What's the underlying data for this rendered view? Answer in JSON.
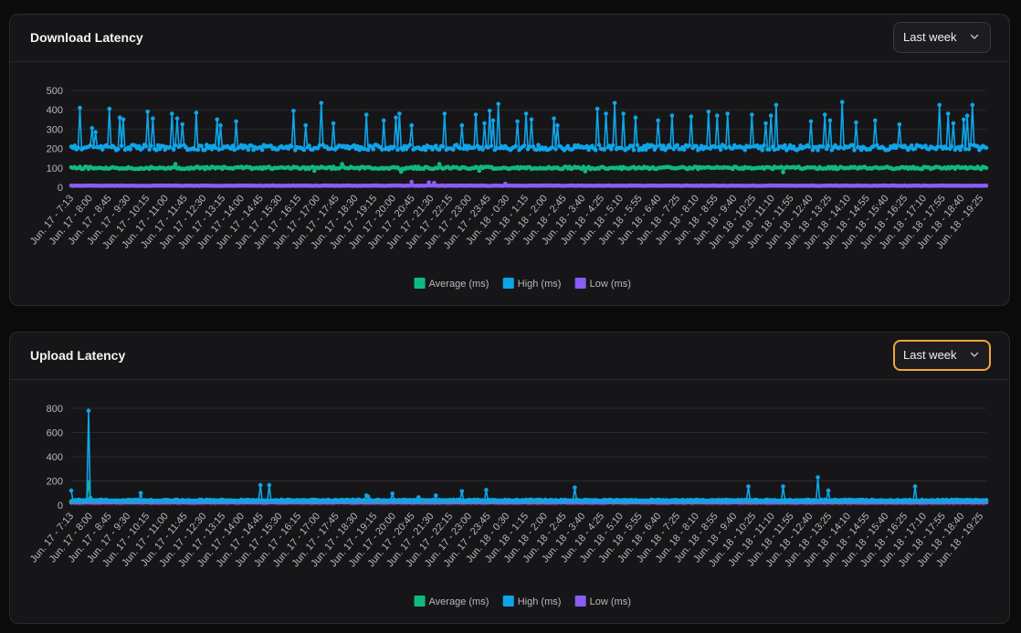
{
  "panels": [
    {
      "title": "Download Latency",
      "range_label": "Last week",
      "focused": false
    },
    {
      "title": "Upload Latency",
      "range_label": "Last week",
      "focused": true
    }
  ],
  "colors": {
    "average": "#10b981",
    "high": "#0ea5e9",
    "low": "#8b5cf6",
    "grid": "#2b2b2f",
    "focus": "#f0a53a"
  },
  "icons": {
    "dropdown": "chevron-down-icon"
  },
  "chart_data": [
    {
      "type": "line",
      "title": "Download Latency",
      "xlabel": "",
      "ylabel": "",
      "ylim": [
        0,
        500
      ],
      "yticks": [
        0,
        100,
        200,
        300,
        400,
        500
      ],
      "grid": true,
      "legend": "bottom-center",
      "x_tick_labels": [
        "Jun. 17 - 7:13",
        "Jun. 17 - 8:00",
        "Jun. 17 - 8:45",
        "Jun. 17 - 9:30",
        "Jun. 17 - 10:15",
        "Jun. 17 - 11:00",
        "Jun. 17 - 11:45",
        "Jun. 17 - 12:30",
        "Jun. 17 - 13:15",
        "Jun. 17 - 14:00",
        "Jun. 17 - 14:45",
        "Jun. 17 - 15:30",
        "Jun. 17 - 16:15",
        "Jun. 17 - 17:00",
        "Jun. 17 - 17:45",
        "Jun. 17 - 18:30",
        "Jun. 17 - 19:15",
        "Jun. 17 - 20:00",
        "Jun. 17 - 20:45",
        "Jun. 17 - 21:30",
        "Jun. 17 - 22:15",
        "Jun. 17 - 23:00",
        "Jun. 17 - 23:45",
        "Jun. 18 - 0:30",
        "Jun. 18 - 1:15",
        "Jun. 18 - 2:00",
        "Jun. 18 - 2:45",
        "Jun. 18 - 3:40",
        "Jun. 18 - 4:25",
        "Jun. 18 - 5:10",
        "Jun. 18 - 5:55",
        "Jun. 18 - 6:40",
        "Jun. 18 - 7:25",
        "Jun. 18 - 8:10",
        "Jun. 18 - 8:55",
        "Jun. 18 - 9:40",
        "Jun. 18 - 10:25",
        "Jun. 18 - 11:10",
        "Jun. 18 - 11:55",
        "Jun. 18 - 12:40",
        "Jun. 18 - 13:25",
        "Jun. 18 - 14:10",
        "Jun. 18 - 14:55",
        "Jun. 18 - 15:40",
        "Jun. 18 - 16:25",
        "Jun. 18 - 17:10",
        "Jun. 18 - 17:55",
        "Jun. 18 - 18:40",
        "Jun. 18 - 19:25"
      ],
      "series": [
        {
          "name": "Average (ms)",
          "key": "average",
          "baseline": 100,
          "noise": 6,
          "spikes": [
            [
              60,
              120
            ],
            [
              140,
              85
            ],
            [
              156,
              120
            ],
            [
              190,
              80
            ],
            [
              212,
              120
            ],
            [
              235,
              85
            ],
            [
              296,
              82
            ],
            [
              410,
              78
            ]
          ]
        },
        {
          "name": "High (ms)",
          "key": "high",
          "baseline": 205,
          "noise": 14,
          "spikes": [
            [
              5,
              410
            ],
            [
              12,
              305
            ],
            [
              14,
              285
            ],
            [
              22,
              405
            ],
            [
              28,
              360
            ],
            [
              30,
              350
            ],
            [
              44,
              390
            ],
            [
              47,
              355
            ],
            [
              58,
              380
            ],
            [
              61,
              355
            ],
            [
              64,
              325
            ],
            [
              72,
              385
            ],
            [
              84,
              350
            ],
            [
              86,
              320
            ],
            [
              95,
              340
            ],
            [
              128,
              395
            ],
            [
              135,
              320
            ],
            [
              144,
              435
            ],
            [
              151,
              330
            ],
            [
              170,
              375
            ],
            [
              180,
              345
            ],
            [
              187,
              360
            ],
            [
              189,
              380
            ],
            [
              196,
              320
            ],
            [
              215,
              380
            ],
            [
              225,
              320
            ],
            [
              233,
              375
            ],
            [
              238,
              330
            ],
            [
              241,
              395
            ],
            [
              243,
              345
            ],
            [
              246,
              430
            ],
            [
              257,
              340
            ],
            [
              262,
              380
            ],
            [
              265,
              350
            ],
            [
              278,
              355
            ],
            [
              280,
              320
            ],
            [
              303,
              405
            ],
            [
              308,
              380
            ],
            [
              313,
              435
            ],
            [
              318,
              380
            ],
            [
              325,
              360
            ],
            [
              338,
              345
            ],
            [
              346,
              370
            ],
            [
              357,
              365
            ],
            [
              367,
              390
            ],
            [
              372,
              370
            ],
            [
              378,
              380
            ],
            [
              392,
              375
            ],
            [
              400,
              330
            ],
            [
              403,
              370
            ],
            [
              406,
              425
            ],
            [
              426,
              340
            ],
            [
              434,
              375
            ],
            [
              437,
              345
            ],
            [
              444,
              440
            ],
            [
              452,
              335
            ],
            [
              463,
              345
            ],
            [
              477,
              325
            ],
            [
              500,
              425
            ],
            [
              505,
              380
            ],
            [
              508,
              330
            ],
            [
              514,
              350
            ],
            [
              516,
              370
            ],
            [
              519,
              425
            ]
          ]
        },
        {
          "name": "Low (ms)",
          "key": "low",
          "baseline": 8,
          "noise": 1,
          "spikes": [
            [
              196,
              28
            ],
            [
              206,
              25
            ],
            [
              209,
              22
            ],
            [
              250,
              18
            ]
          ]
        }
      ]
    },
    {
      "type": "line",
      "title": "Upload Latency",
      "xlabel": "",
      "ylabel": "",
      "ylim": [
        0,
        800
      ],
      "yticks": [
        0,
        200,
        400,
        600,
        800
      ],
      "grid": true,
      "legend": "bottom-center",
      "x_tick_labels": [
        "Jun. 17 - 7:13",
        "Jun. 17 - 8:00",
        "Jun. 17 - 8:45",
        "Jun. 17 - 9:30",
        "Jun. 17 - 10:15",
        "Jun. 17 - 11:00",
        "Jun. 17 - 11:45",
        "Jun. 17 - 12:30",
        "Jun. 17 - 13:15",
        "Jun. 17 - 14:00",
        "Jun. 17 - 14:45",
        "Jun. 17 - 15:30",
        "Jun. 17 - 16:15",
        "Jun. 17 - 17:00",
        "Jun. 17 - 17:45",
        "Jun. 17 - 18:30",
        "Jun. 17 - 19:15",
        "Jun. 17 - 20:00",
        "Jun. 17 - 20:45",
        "Jun. 17 - 21:30",
        "Jun. 17 - 22:15",
        "Jun. 17 - 23:00",
        "Jun. 17 - 23:45",
        "Jun. 18 - 0:30",
        "Jun. 18 - 1:15",
        "Jun. 18 - 2:00",
        "Jun. 18 - 2:45",
        "Jun. 18 - 3:40",
        "Jun. 18 - 4:25",
        "Jun. 18 - 5:10",
        "Jun. 18 - 5:55",
        "Jun. 18 - 6:40",
        "Jun. 18 - 7:25",
        "Jun. 18 - 8:10",
        "Jun. 18 - 8:55",
        "Jun. 18 - 9:40",
        "Jun. 18 - 10:25",
        "Jun. 18 - 11:10",
        "Jun. 18 - 11:55",
        "Jun. 18 - 12:40",
        "Jun. 18 - 13:25",
        "Jun. 18 - 14:10",
        "Jun. 18 - 14:55",
        "Jun. 18 - 15:40",
        "Jun. 18 - 16:25",
        "Jun. 18 - 17:10",
        "Jun. 18 - 17:55",
        "Jun. 18 - 18:40",
        "Jun. 18 - 19:25"
      ],
      "series": [
        {
          "name": "Average (ms)",
          "key": "average",
          "baseline": 35,
          "noise": 3,
          "spikes": [
            [
              10,
              190
            ],
            [
              11,
              60
            ]
          ]
        },
        {
          "name": "High (ms)",
          "key": "high",
          "baseline": 40,
          "noise": 5,
          "spikes": [
            [
              0,
              120
            ],
            [
              10,
              780
            ],
            [
              40,
              100
            ],
            [
              109,
              165
            ],
            [
              114,
              165
            ],
            [
              170,
              80
            ],
            [
              171,
              70
            ],
            [
              185,
              95
            ],
            [
              200,
              65
            ],
            [
              210,
              80
            ],
            [
              225,
              115
            ],
            [
              239,
              125
            ],
            [
              290,
              145
            ],
            [
              390,
              155
            ],
            [
              410,
              155
            ],
            [
              430,
              230
            ],
            [
              436,
              120
            ],
            [
              486,
              155
            ]
          ]
        },
        {
          "name": "Low (ms)",
          "key": "low",
          "baseline": 22,
          "noise": 2,
          "spikes": []
        }
      ]
    }
  ]
}
